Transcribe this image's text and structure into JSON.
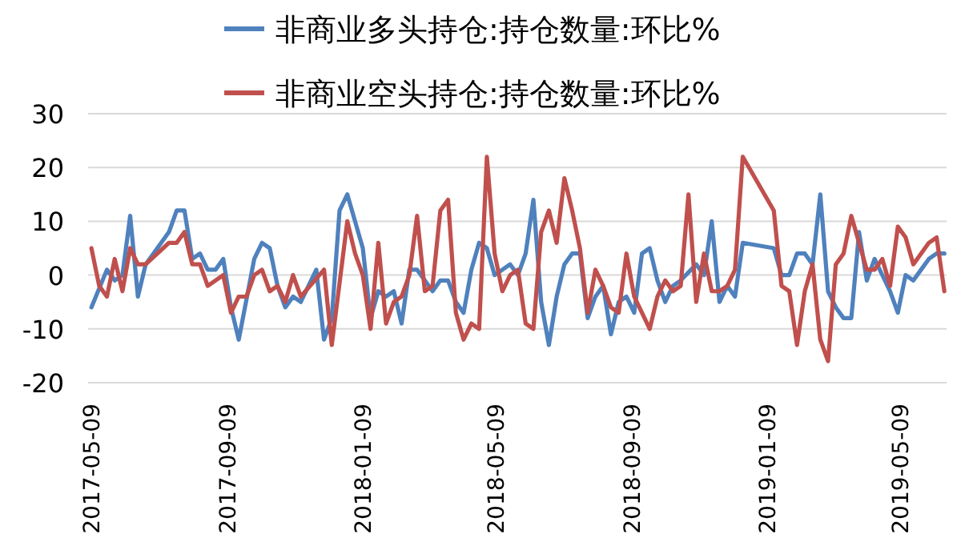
{
  "chart_data": {
    "type": "line",
    "legend": "top",
    "grid": "y",
    "ylim": [
      -20,
      30
    ],
    "yticks": [
      -20,
      -10,
      0,
      10,
      20,
      30
    ],
    "xlim": [
      "2017-05-06",
      "2019-06-20"
    ],
    "xticks": [
      "2017-05-09",
      "2017-09-09",
      "2018-01-09",
      "2018-05-09",
      "2018-09-09",
      "2019-01-09",
      "2019-05-09"
    ],
    "series": [
      {
        "name": "非商业多头持仓:持仓数量:环比%",
        "color": "#4f81bd",
        "x": [
          "2017-05-09",
          "2017-05-23",
          "2017-05-30",
          "2017-06-06",
          "2017-06-13",
          "2017-06-20",
          "2017-06-27",
          "2017-07-18",
          "2017-07-25",
          "2017-08-01",
          "2017-08-08",
          "2017-08-15",
          "2017-08-22",
          "2017-08-29",
          "2017-09-05",
          "2017-09-12",
          "2017-09-19",
          "2017-10-03",
          "2017-10-10",
          "2017-10-17",
          "2017-10-24",
          "2017-10-31",
          "2017-11-07",
          "2017-11-14",
          "2017-11-28",
          "2017-12-05",
          "2017-12-12",
          "2017-12-19",
          "2017-12-26",
          "2018-01-02",
          "2018-01-09",
          "2018-01-16",
          "2018-01-23",
          "2018-01-30",
          "2018-02-06",
          "2018-02-13",
          "2018-02-20",
          "2018-02-27",
          "2018-03-06",
          "2018-03-13",
          "2018-03-20",
          "2018-03-27",
          "2018-04-03",
          "2018-04-10",
          "2018-04-17",
          "2018-04-24",
          "2018-05-01",
          "2018-05-08",
          "2018-05-15",
          "2018-05-22",
          "2018-05-29",
          "2018-06-05",
          "2018-06-12",
          "2018-06-19",
          "2018-06-26",
          "2018-07-03",
          "2018-07-10",
          "2018-07-17",
          "2018-07-24",
          "2018-07-31",
          "2018-08-07",
          "2018-08-14",
          "2018-08-21",
          "2018-08-28",
          "2018-09-04",
          "2018-09-11",
          "2018-09-18",
          "2018-09-25",
          "2018-10-02",
          "2018-10-09",
          "2018-10-16",
          "2018-10-23",
          "2018-11-06",
          "2018-11-13",
          "2018-11-20",
          "2018-11-27",
          "2018-12-04",
          "2018-12-11",
          "2018-12-18",
          "2019-01-15",
          "2019-01-22",
          "2019-01-29",
          "2019-02-05",
          "2019-02-12",
          "2019-02-19",
          "2019-02-26",
          "2019-03-05",
          "2019-03-12",
          "2019-03-19",
          "2019-03-26",
          "2019-04-02",
          "2019-04-09",
          "2019-04-16",
          "2019-04-23",
          "2019-04-30",
          "2019-05-07",
          "2019-05-14",
          "2019-05-21",
          "2019-05-28",
          "2019-06-04",
          "2019-06-11",
          "2019-06-18"
        ],
        "values": [
          -6,
          1,
          -1,
          0,
          11,
          -4,
          2,
          8,
          12,
          12,
          3,
          4,
          1,
          1,
          3,
          -6,
          -12,
          3,
          6,
          5,
          -2,
          -6,
          -4,
          -5,
          1,
          -12,
          -8,
          12,
          15,
          10,
          5,
          -8,
          -3,
          -4,
          -3,
          -9,
          1,
          1,
          -1,
          -3,
          -1,
          -1,
          -5,
          -7,
          1,
          6,
          5,
          0,
          1,
          2,
          0,
          4,
          14,
          -5,
          -13,
          -4,
          2,
          4,
          4,
          -8,
          -4,
          -2,
          -11,
          -5,
          -4,
          -7,
          4,
          5,
          -1,
          -5,
          -2,
          -1,
          2,
          0,
          10,
          -5,
          -2,
          -4,
          6,
          5,
          0,
          0,
          4,
          4,
          2,
          15,
          -3,
          -6,
          -8,
          -8,
          8,
          -1,
          3,
          0,
          -3,
          -7,
          0,
          -1,
          1,
          3,
          4,
          4
        ]
      },
      {
        "name": "非商业空头持仓:持仓数量:环比%",
        "color": "#c0504d",
        "x": [
          "2017-05-09",
          "2017-05-16",
          "2017-05-23",
          "2017-05-30",
          "2017-06-06",
          "2017-06-13",
          "2017-06-20",
          "2017-06-27",
          "2017-07-18",
          "2017-07-25",
          "2017-08-01",
          "2017-08-08",
          "2017-08-15",
          "2017-08-22",
          "2017-09-05",
          "2017-09-12",
          "2017-09-19",
          "2017-09-26",
          "2017-10-03",
          "2017-10-10",
          "2017-10-17",
          "2017-10-24",
          "2017-10-31",
          "2017-11-07",
          "2017-11-14",
          "2017-12-05",
          "2017-12-12",
          "2017-12-26",
          "2018-01-02",
          "2018-01-09",
          "2018-01-16",
          "2018-01-23",
          "2018-01-30",
          "2018-02-06",
          "2018-02-13",
          "2018-02-20",
          "2018-02-27",
          "2018-03-06",
          "2018-03-13",
          "2018-03-20",
          "2018-03-27",
          "2018-04-03",
          "2018-04-10",
          "2018-04-17",
          "2018-04-24",
          "2018-05-01",
          "2018-05-08",
          "2018-05-15",
          "2018-05-22",
          "2018-05-29",
          "2018-06-05",
          "2018-06-12",
          "2018-06-19",
          "2018-06-26",
          "2018-07-03",
          "2018-07-10",
          "2018-07-17",
          "2018-07-24",
          "2018-07-31",
          "2018-08-07",
          "2018-08-14",
          "2018-08-21",
          "2018-08-28",
          "2018-09-04",
          "2018-09-11",
          "2018-09-18",
          "2018-09-25",
          "2018-10-02",
          "2018-10-09",
          "2018-10-16",
          "2018-10-23",
          "2018-10-30",
          "2018-11-06",
          "2018-11-13",
          "2018-11-20",
          "2018-11-27",
          "2018-12-04",
          "2018-12-11",
          "2018-12-18",
          "2019-01-15",
          "2019-01-22",
          "2019-01-29",
          "2019-02-05",
          "2019-02-12",
          "2019-02-19",
          "2019-02-26",
          "2019-03-05",
          "2019-03-12",
          "2019-03-19",
          "2019-03-26",
          "2019-04-02",
          "2019-04-09",
          "2019-04-16",
          "2019-04-23",
          "2019-04-30",
          "2019-05-07",
          "2019-05-14",
          "2019-05-21",
          "2019-05-28",
          "2019-06-04",
          "2019-06-11",
          "2019-06-18"
        ],
        "values": [
          5,
          -2,
          -4,
          3,
          -3,
          5,
          2,
          2,
          6,
          6,
          8,
          2,
          2,
          -2,
          0,
          -7,
          -4,
          -4,
          0,
          1,
          -3,
          -2,
          -5,
          0,
          -4,
          1,
          -13,
          10,
          4,
          0,
          -10,
          6,
          -9,
          -5,
          -4,
          0,
          11,
          -3,
          -2,
          12,
          14,
          -7,
          -12,
          -9,
          -10,
          22,
          4,
          -3,
          0,
          1,
          -9,
          -10,
          8,
          12,
          6,
          18,
          12,
          5,
          -7,
          1,
          -2,
          -6,
          -7,
          4,
          -4,
          -7,
          -10,
          -4,
          -1,
          -3,
          -2,
          15,
          -5,
          4,
          -3,
          -3,
          -2,
          1,
          22,
          12,
          -2,
          -3,
          -13,
          -3,
          2,
          -12,
          -16,
          2,
          4,
          11,
          6,
          1,
          1,
          3,
          -2,
          9,
          7,
          2,
          4,
          6,
          7,
          -3
        ]
      }
    ]
  }
}
